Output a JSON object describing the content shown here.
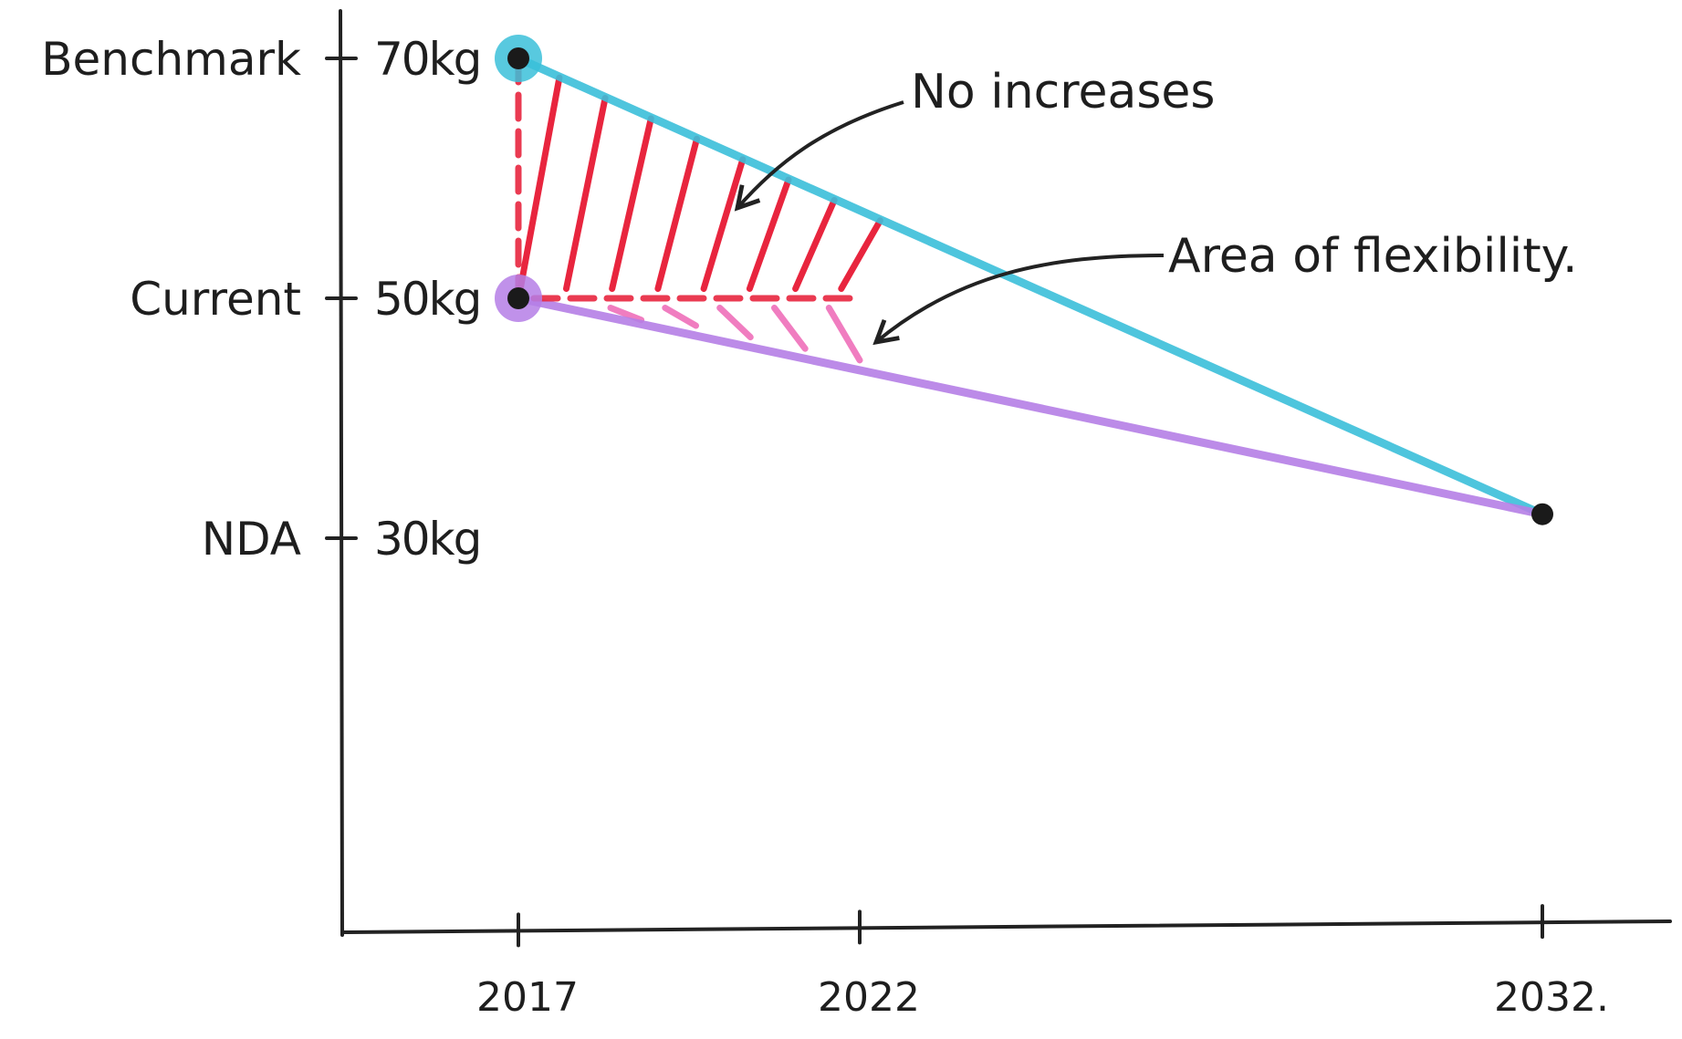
{
  "chart_data": {
    "type": "line",
    "title": "",
    "xlabel": "",
    "ylabel": "",
    "x_ticks": [
      {
        "value": 2017,
        "label": "2017"
      },
      {
        "value": 2022,
        "label": "2022"
      },
      {
        "value": 2032,
        "label": "2032."
      }
    ],
    "y_ticks": [
      {
        "value": 70,
        "label": "70kg",
        "category": "Benchmark"
      },
      {
        "value": 50,
        "label": "50kg",
        "category": "Current"
      },
      {
        "value": 30,
        "label": "30kg",
        "category": "NDA"
      }
    ],
    "series": [
      {
        "points": [
          [
            2017,
            70
          ],
          [
            2032,
            32
          ]
        ],
        "color": "#3bbfd9"
      },
      {
        "points": [
          [
            2017,
            50
          ],
          [
            2032,
            32
          ]
        ],
        "color": "#b57ee6"
      },
      {
        "points": [
          [
            2017,
            70
          ],
          [
            2017,
            50
          ],
          [
            2022,
            50
          ]
        ],
        "color": "#e8253e",
        "style": "dashed"
      }
    ],
    "annotations": [
      {
        "text": "No increases",
        "color": "#e8253e"
      },
      {
        "text": "Area of flexibility.",
        "color": "#f07dc0"
      }
    ],
    "grid": false
  }
}
